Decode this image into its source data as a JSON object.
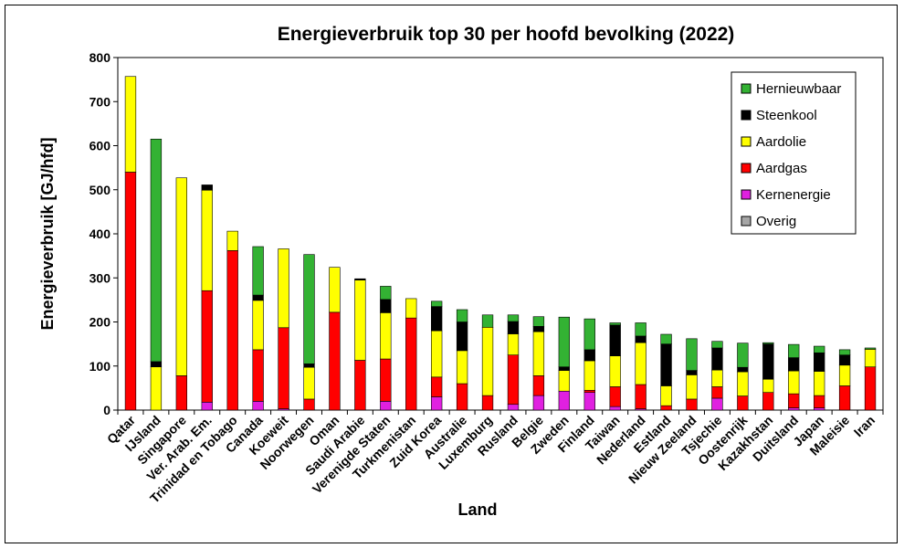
{
  "chart_data": {
    "type": "bar",
    "stacked": true,
    "title": "Energieverbruik top 30 per hoofd bevolking (2022)",
    "xlabel": "Land",
    "ylabel": "Energieverbruik  [GJ/hfd]",
    "ylim": [
      0,
      800
    ],
    "yticks": [
      0,
      100,
      200,
      300,
      400,
      500,
      600,
      700,
      800
    ],
    "legend_position": "top-right",
    "categories": [
      "Qatar",
      "IJsland",
      "Singapore",
      "Ver. Arab. Em.",
      "Trinidad en Tobago",
      "Canada",
      "Koeweit",
      "Noorwegen",
      "Oman",
      "Saudi Arabie",
      "Verenigde Staten",
      "Turkmenistan",
      "Zuid Korea",
      "Australie",
      "Luxemburg",
      "Rusland",
      "Belgie",
      "Zweden",
      "Finland",
      "Taiwan",
      "Nederland",
      "Estland",
      "Nieuw Zeeland",
      "Tsjechie",
      "Oostenrijk",
      "Kazakhstan",
      "Duitsland",
      "Japan",
      "Maleisie",
      "Iran"
    ],
    "series": [
      {
        "name": "Overig",
        "color": "#a6a6a6",
        "values": [
          0,
          0,
          0,
          0,
          0,
          0,
          0,
          0,
          0,
          0,
          0,
          0,
          0,
          0,
          0,
          0,
          0,
          0,
          0,
          0,
          0,
          0,
          0,
          0,
          0,
          0,
          0,
          0,
          0,
          0
        ]
      },
      {
        "name": "Kernenergie",
        "color": "#e020e0",
        "values": [
          0,
          0,
          0,
          18,
          0,
          20,
          3,
          0,
          0,
          0,
          20,
          0,
          30,
          0,
          0,
          13,
          33,
          43,
          40,
          8,
          3,
          0,
          0,
          27,
          0,
          0,
          5,
          5,
          0,
          0
        ]
      },
      {
        "name": "Aardgas",
        "color": "#ff0000",
        "values": [
          540,
          0,
          78,
          253,
          362,
          117,
          184,
          25,
          222,
          113,
          96,
          209,
          45,
          60,
          33,
          112,
          45,
          0,
          5,
          45,
          55,
          10,
          25,
          26,
          32,
          40,
          32,
          28,
          55,
          98
        ]
      },
      {
        "name": "Aardolie",
        "color": "#ffff00",
        "values": [
          217,
          98,
          449,
          228,
          44,
          112,
          179,
          72,
          102,
          182,
          105,
          44,
          105,
          75,
          155,
          48,
          100,
          47,
          67,
          70,
          95,
          45,
          55,
          38,
          55,
          30,
          52,
          55,
          47,
          40
        ]
      },
      {
        "name": "Steenkool",
        "color": "#000000",
        "values": [
          0,
          12,
          0,
          12,
          0,
          12,
          0,
          8,
          0,
          3,
          30,
          0,
          55,
          65,
          0,
          28,
          12,
          8,
          25,
          70,
          15,
          95,
          10,
          50,
          10,
          80,
          30,
          42,
          23,
          0
        ]
      },
      {
        "name": "Hernieuwbaar",
        "color": "#33b233",
        "values": [
          0,
          505,
          0,
          0,
          0,
          110,
          0,
          248,
          0,
          0,
          30,
          0,
          12,
          28,
          28,
          15,
          22,
          113,
          70,
          5,
          30,
          22,
          72,
          15,
          55,
          3,
          30,
          15,
          12,
          3
        ]
      }
    ],
    "legend_order": [
      "Hernieuwbaar",
      "Steenkool",
      "Aardolie",
      "Aardgas",
      "Kernenergie",
      "Overig"
    ]
  }
}
